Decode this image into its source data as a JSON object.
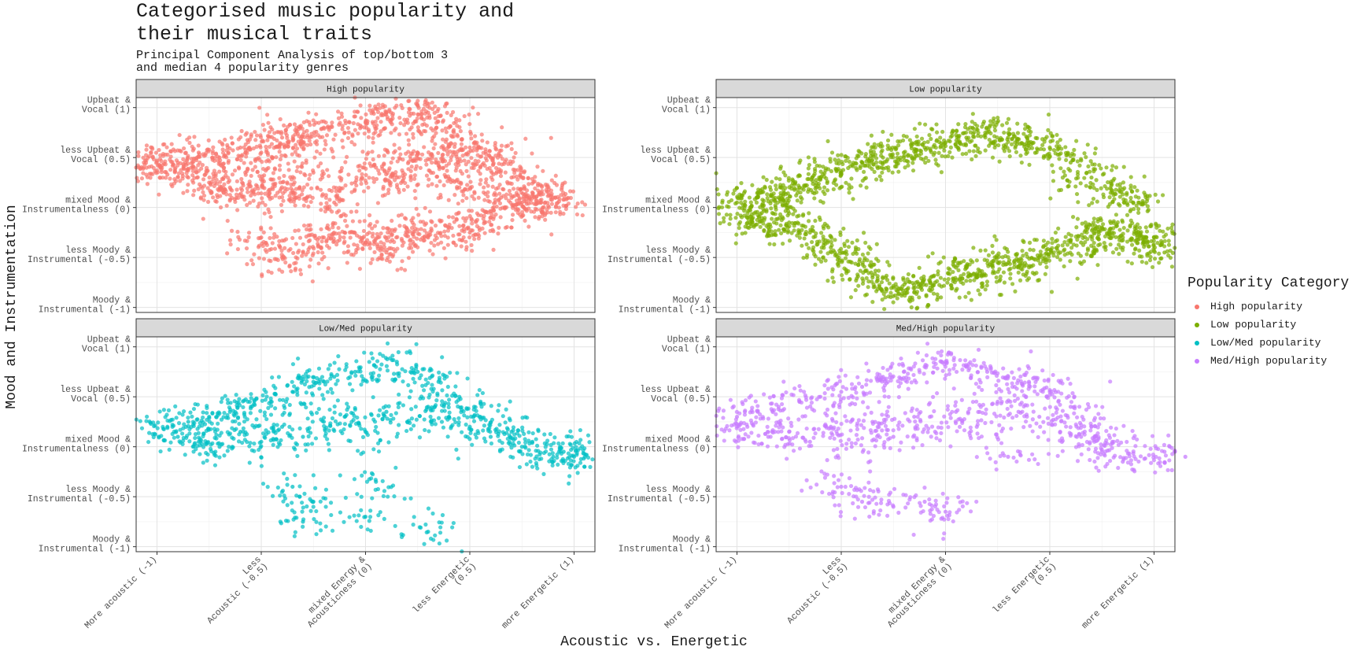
{
  "chart_data": {
    "type": "scatter",
    "title": "Categorised music popularity and\ntheir musical traits",
    "subtitle": "Principal Component Analysis of top/bottom 3\nand median 4 popularity genres",
    "xlabel": "Acoustic vs. Energetic",
    "ylabel": "Mood and Instrumentation",
    "xlim": [
      -1.1,
      1.1
    ],
    "ylim": [
      -1.05,
      1.1
    ],
    "x_ticks": [
      {
        "value": -1,
        "label": "More acoustic (-1)"
      },
      {
        "value": -0.5,
        "label": "Less\nAcoustic (-0.5)"
      },
      {
        "value": 0,
        "label": "mixed Energy &\nAcousticness (0)"
      },
      {
        "value": 0.5,
        "label": "less Energetic\n(0.5)"
      },
      {
        "value": 1,
        "label": "more Energetic (1)"
      }
    ],
    "y_ticks": [
      {
        "value": 1,
        "label": "Upbeat &\nVocal (1)"
      },
      {
        "value": 0.5,
        "label": "less Upbeat &\nVocal (0.5)"
      },
      {
        "value": 0,
        "label": "mixed Mood &\nInstrumentalness (0)"
      },
      {
        "value": -0.5,
        "label": "less Moody &\nInstrumental (-0.5)"
      },
      {
        "value": -1,
        "label": "Moody &\nInstrumental (-1)"
      }
    ],
    "grid": true,
    "legend": {
      "title": "Popularity Category",
      "position": "right",
      "entries": [
        {
          "label": "High popularity",
          "color": "#F8766D"
        },
        {
          "label": "Low popularity",
          "color": "#7CAE00"
        },
        {
          "label": "Low/Med popularity",
          "color": "#00BFC4"
        },
        {
          "label": "Med/High popularity",
          "color": "#C77CFF"
        }
      ]
    },
    "facets": [
      {
        "name": "High popularity",
        "color": "#F8766D",
        "points": [
          [
            -1.1,
            0.4
          ],
          [
            -1.0,
            0.47
          ],
          [
            -0.95,
            0.33
          ],
          [
            -0.9,
            0.45
          ],
          [
            -0.85,
            0.3
          ],
          [
            -0.8,
            0.55
          ],
          [
            -0.75,
            0.25
          ],
          [
            -0.7,
            0.5
          ],
          [
            -0.65,
            0.2
          ],
          [
            -0.6,
            0.6
          ],
          [
            -0.55,
            0.12
          ],
          [
            -0.5,
            0.55
          ],
          [
            -0.45,
            0.28
          ],
          [
            -0.4,
            0.7
          ],
          [
            -0.35,
            0.15
          ],
          [
            -0.3,
            0.65
          ],
          [
            -0.25,
            0.35
          ],
          [
            -0.2,
            0.8
          ],
          [
            -0.15,
            0.05
          ],
          [
            -0.1,
            0.75
          ],
          [
            -0.05,
            0.25
          ],
          [
            0.0,
            0.85
          ],
          [
            0.05,
            0.4
          ],
          [
            0.1,
            0.95
          ],
          [
            0.15,
            0.3
          ],
          [
            0.2,
            0.88
          ],
          [
            0.25,
            0.55
          ],
          [
            0.3,
            0.95
          ],
          [
            0.35,
            0.45
          ],
          [
            0.4,
            0.8
          ],
          [
            0.45,
            0.2
          ],
          [
            0.5,
            0.6
          ],
          [
            0.55,
            0.4
          ],
          [
            0.6,
            0.5
          ],
          [
            0.65,
            0.1
          ],
          [
            0.7,
            0.3
          ],
          [
            0.75,
            0.05
          ],
          [
            0.8,
            0.15
          ],
          [
            0.85,
            0.0
          ],
          [
            0.9,
            0.1
          ],
          [
            -0.5,
            -0.3
          ],
          [
            -0.4,
            -0.5
          ],
          [
            -0.3,
            -0.45
          ],
          [
            -0.2,
            -0.3
          ],
          [
            -0.1,
            -0.25
          ],
          [
            0.0,
            -0.35
          ],
          [
            0.1,
            -0.45
          ],
          [
            0.2,
            -0.25
          ],
          [
            0.3,
            -0.3
          ],
          [
            0.4,
            -0.2
          ],
          [
            0.5,
            -0.25
          ],
          [
            0.6,
            -0.1
          ]
        ]
      },
      {
        "name": "Low popularity",
        "color": "#7CAE00",
        "points": [
          [
            -1.0,
            0.05
          ],
          [
            -0.95,
            -0.1
          ],
          [
            -0.9,
            0.15
          ],
          [
            -0.85,
            -0.2
          ],
          [
            -0.8,
            0.1
          ],
          [
            -0.75,
            -0.15
          ],
          [
            -0.7,
            0.2
          ],
          [
            -0.65,
            -0.25
          ],
          [
            -0.6,
            0.3
          ],
          [
            -0.55,
            -0.4
          ],
          [
            -0.5,
            0.35
          ],
          [
            -0.45,
            -0.55
          ],
          [
            -0.4,
            0.45
          ],
          [
            -0.35,
            -0.7
          ],
          [
            -0.3,
            0.5
          ],
          [
            -0.25,
            -0.8
          ],
          [
            -0.2,
            0.55
          ],
          [
            -0.15,
            -0.85
          ],
          [
            -0.1,
            0.6
          ],
          [
            -0.05,
            -0.75
          ],
          [
            0.0,
            0.65
          ],
          [
            0.05,
            -0.6
          ],
          [
            0.1,
            0.7
          ],
          [
            0.15,
            -0.7
          ],
          [
            0.2,
            0.75
          ],
          [
            0.25,
            -0.55
          ],
          [
            0.3,
            0.7
          ],
          [
            0.35,
            -0.6
          ],
          [
            0.4,
            0.65
          ],
          [
            0.45,
            -0.5
          ],
          [
            0.5,
            0.6
          ],
          [
            0.55,
            -0.45
          ],
          [
            0.6,
            0.45
          ],
          [
            0.65,
            -0.35
          ],
          [
            0.7,
            0.3
          ],
          [
            0.75,
            -0.2
          ],
          [
            0.8,
            0.15
          ],
          [
            0.85,
            -0.3
          ],
          [
            0.9,
            0.05
          ],
          [
            0.95,
            -0.35
          ],
          [
            1.0,
            -0.3
          ],
          [
            1.05,
            -0.45
          ]
        ]
      },
      {
        "name": "Low/Med popularity",
        "color": "#00BFC4",
        "points": [
          [
            -0.95,
            0.2
          ],
          [
            -0.9,
            0.1
          ],
          [
            -0.85,
            0.25
          ],
          [
            -0.8,
            0.05
          ],
          [
            -0.75,
            0.3
          ],
          [
            -0.7,
            0.0
          ],
          [
            -0.65,
            0.35
          ],
          [
            -0.6,
            0.15
          ],
          [
            -0.55,
            0.4
          ],
          [
            -0.5,
            0.05
          ],
          [
            -0.45,
            0.45
          ],
          [
            -0.4,
            0.2
          ],
          [
            -0.35,
            0.55
          ],
          [
            -0.3,
            0.1
          ],
          [
            -0.25,
            0.65
          ],
          [
            -0.2,
            0.25
          ],
          [
            -0.15,
            0.7
          ],
          [
            -0.1,
            0.3
          ],
          [
            -0.05,
            0.75
          ],
          [
            0.0,
            0.15
          ],
          [
            0.05,
            0.8
          ],
          [
            0.1,
            0.35
          ],
          [
            0.15,
            0.85
          ],
          [
            0.2,
            0.25
          ],
          [
            0.25,
            0.75
          ],
          [
            0.3,
            0.4
          ],
          [
            0.35,
            0.65
          ],
          [
            0.4,
            0.3
          ],
          [
            0.45,
            0.5
          ],
          [
            0.5,
            0.2
          ],
          [
            0.55,
            0.3
          ],
          [
            0.6,
            0.1
          ],
          [
            0.7,
            0.15
          ],
          [
            0.75,
            0.0
          ],
          [
            0.8,
            0.05
          ],
          [
            0.9,
            -0.1
          ],
          [
            0.95,
            -0.05
          ],
          [
            1.0,
            -0.1
          ],
          [
            1.05,
            -0.2
          ],
          [
            -0.25,
            -0.55
          ],
          [
            -0.3,
            -0.75
          ],
          [
            -0.35,
            -0.4
          ],
          [
            0.0,
            -0.7
          ],
          [
            0.3,
            -0.85
          ],
          [
            0.05,
            -0.35
          ]
        ]
      },
      {
        "name": "Med/High popularity",
        "color": "#C77CFF",
        "points": [
          [
            -1.0,
            0.3
          ],
          [
            -0.95,
            0.2
          ],
          [
            -0.9,
            0.35
          ],
          [
            -0.85,
            0.1
          ],
          [
            -0.8,
            0.4
          ],
          [
            -0.75,
            0.15
          ],
          [
            -0.7,
            0.45
          ],
          [
            -0.65,
            0.05
          ],
          [
            -0.6,
            0.5
          ],
          [
            -0.55,
            0.2
          ],
          [
            -0.5,
            0.55
          ],
          [
            -0.45,
            0.0
          ],
          [
            -0.4,
            0.6
          ],
          [
            -0.35,
            0.25
          ],
          [
            -0.3,
            0.7
          ],
          [
            -0.25,
            0.1
          ],
          [
            -0.2,
            0.75
          ],
          [
            -0.15,
            0.3
          ],
          [
            -0.1,
            0.8
          ],
          [
            -0.05,
            0.15
          ],
          [
            0.0,
            0.85
          ],
          [
            0.05,
            0.35
          ],
          [
            0.1,
            0.8
          ],
          [
            0.15,
            0.2
          ],
          [
            0.2,
            0.75
          ],
          [
            0.25,
            0.45
          ],
          [
            0.3,
            0.7
          ],
          [
            0.35,
            0.35
          ],
          [
            0.4,
            0.65
          ],
          [
            0.45,
            0.3
          ],
          [
            0.5,
            0.55
          ],
          [
            0.55,
            0.15
          ],
          [
            0.6,
            0.4
          ],
          [
            0.65,
            0.1
          ],
          [
            0.7,
            0.2
          ],
          [
            0.75,
            -0.05
          ],
          [
            0.8,
            0.05
          ],
          [
            0.85,
            -0.15
          ],
          [
            1.05,
            -0.05
          ],
          [
            1.1,
            -0.05
          ],
          [
            1.15,
            -0.1
          ],
          [
            -0.5,
            -0.4
          ],
          [
            -0.4,
            -0.55
          ],
          [
            -0.25,
            -0.6
          ],
          [
            0.0,
            -0.65
          ],
          [
            -0.1,
            -0.55
          ],
          [
            0.3,
            -0.1
          ]
        ]
      }
    ]
  }
}
